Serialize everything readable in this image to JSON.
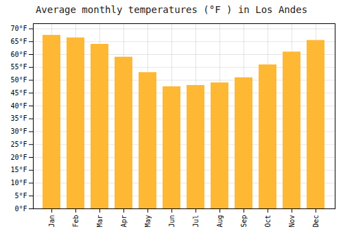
{
  "chart_data": {
    "type": "bar",
    "title": "Average monthly temperatures (°F ) in Los Andes",
    "categories": [
      "Jan",
      "Feb",
      "Mar",
      "Apr",
      "May",
      "Jun",
      "Jul",
      "Aug",
      "Sep",
      "Oct",
      "Nov",
      "Dec"
    ],
    "values": [
      67.5,
      66.5,
      64.0,
      59.0,
      53.0,
      47.5,
      48.0,
      49.0,
      51.0,
      56.0,
      61.0,
      65.5
    ],
    "color": "#FFB833",
    "ylim": [
      0,
      72
    ],
    "yticks": [
      {
        "value": 0,
        "label": "0°F"
      },
      {
        "value": 5,
        "label": "5°F"
      },
      {
        "value": 10,
        "label": "10°F"
      },
      {
        "value": 15,
        "label": "15°F"
      },
      {
        "value": 20,
        "label": "20°F"
      },
      {
        "value": 25,
        "label": "25°F"
      },
      {
        "value": 30,
        "label": "30°F"
      },
      {
        "value": 35,
        "label": "35°F"
      },
      {
        "value": 40,
        "label": "40°F"
      },
      {
        "value": 45,
        "label": "45°F"
      },
      {
        "value": 50,
        "label": "50°F"
      },
      {
        "value": 55,
        "label": "55°F"
      },
      {
        "value": 60,
        "label": "60°F"
      },
      {
        "value": 65,
        "label": "65°F"
      },
      {
        "value": 70,
        "label": "70°F"
      }
    ],
    "grid": true
  }
}
